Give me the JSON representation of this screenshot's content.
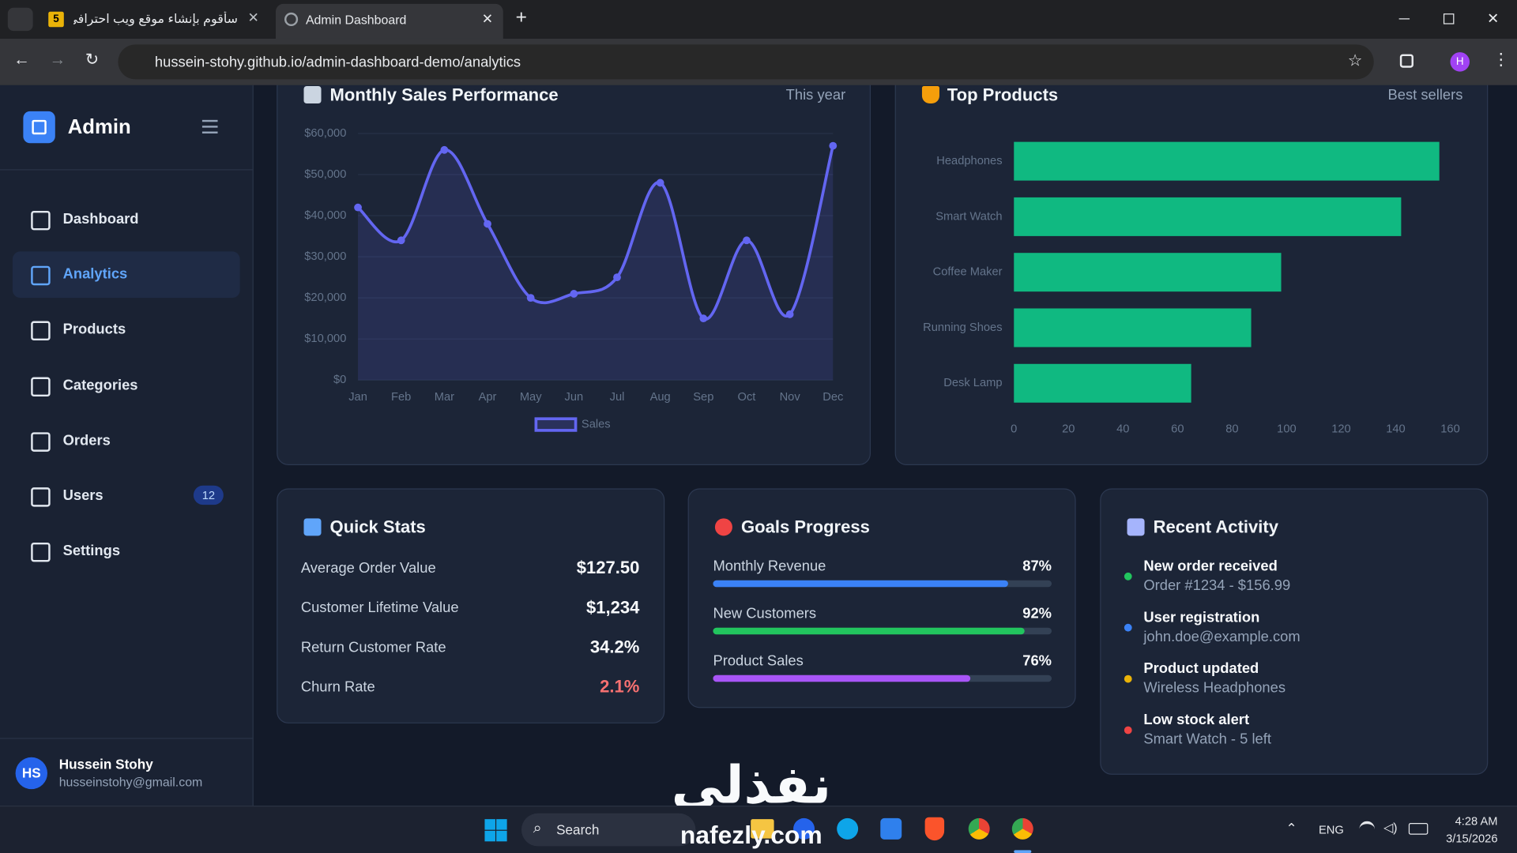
{
  "browser": {
    "tabs": [
      {
        "icon": "5",
        "title": "سأقوم بإنشاء موقع ويب احترافي"
      },
      {
        "title": "Admin Dashboard"
      }
    ],
    "url": "hussein-stohy.github.io/admin-dashboard-demo/analytics",
    "profile": "H"
  },
  "sidebar": {
    "brand": "Admin",
    "nav": [
      {
        "label": "Dashboard"
      },
      {
        "label": "Analytics",
        "active": true
      },
      {
        "label": "Products"
      },
      {
        "label": "Categories"
      },
      {
        "label": "Orders"
      },
      {
        "label": "Users",
        "badge": 12
      },
      {
        "label": "Settings"
      }
    ],
    "user": {
      "initials": "HS",
      "name": "Hussein Stohy",
      "email": "husseinstohy@gmail.com"
    }
  },
  "chart_data": [
    {
      "type": "line",
      "title": "Monthly Sales Performance",
      "subtitle": "This year",
      "categories": [
        "Jan",
        "Feb",
        "Mar",
        "Apr",
        "May",
        "Jun",
        "Jul",
        "Aug",
        "Sep",
        "Oct",
        "Nov",
        "Dec"
      ],
      "series": [
        {
          "name": "Sales",
          "color": "#6366f1",
          "values": [
            42000,
            34000,
            56000,
            38000,
            20000,
            21000,
            25000,
            48000,
            15000,
            34000,
            16000,
            57000
          ]
        }
      ],
      "ylim": [
        0,
        60000
      ],
      "yticks": [
        {
          "value": 0,
          "label": "$0"
        },
        {
          "value": 10000,
          "label": "$10,000"
        },
        {
          "value": 20000,
          "label": "$20,000"
        },
        {
          "value": 30000,
          "label": "$30,000"
        },
        {
          "value": 40000,
          "label": "$40,000"
        },
        {
          "value": 50000,
          "label": "$50,000"
        },
        {
          "value": 60000,
          "label": "$60,000"
        }
      ],
      "grid": true,
      "area": true
    },
    {
      "type": "bar",
      "orientation": "horizontal",
      "title": "Top Products",
      "subtitle": "Best sellers",
      "categories": [
        "Headphones",
        "Smart Watch",
        "Coffee Maker",
        "Running Shoes",
        "Desk Lamp"
      ],
      "values": [
        156,
        142,
        98,
        87,
        65
      ],
      "color": "#10b981",
      "xlim": [
        0,
        160
      ],
      "xticks": [
        0,
        20,
        40,
        60,
        80,
        100,
        120,
        140,
        160
      ]
    }
  ],
  "quick_stats": {
    "title": "Quick Stats",
    "rows": [
      {
        "label": "Average Order Value",
        "value": "$127.50"
      },
      {
        "label": "Customer Lifetime Value",
        "value": "$1,234"
      },
      {
        "label": "Return Customer Rate",
        "value": "34.2%"
      },
      {
        "label": "Churn Rate",
        "value": "2.1%",
        "negative": true
      }
    ]
  },
  "goals": {
    "title": "Goals Progress",
    "items": [
      {
        "label": "Monthly Revenue",
        "value": 87,
        "value_label": "87%",
        "color": "#3b82f6"
      },
      {
        "label": "New Customers",
        "value": 92,
        "value_label": "92%",
        "color": "#22c55e"
      },
      {
        "label": "Product Sales",
        "value": 76,
        "value_label": "76%",
        "color": "#a855f7"
      }
    ]
  },
  "activity": {
    "title": "Recent Activity",
    "items": [
      {
        "title": "New order received",
        "detail": "Order #1234 - $156.99",
        "color": "#22c55e"
      },
      {
        "title": "User registration",
        "detail": "john.doe@example.com",
        "color": "#3b82f6"
      },
      {
        "title": "Product updated",
        "detail": "Wireless Headphones",
        "color": "#eab308"
      },
      {
        "title": "Low stock alert",
        "detail": "Smart Watch - 5 left",
        "color": "#ef4444"
      }
    ]
  },
  "watermark": {
    "arabic": "نفذلي",
    "latin": "nafezly.com"
  },
  "taskbar": {
    "search": "Search",
    "language": "ENG",
    "time": "4:28 AM",
    "date": "3/15/2026"
  }
}
